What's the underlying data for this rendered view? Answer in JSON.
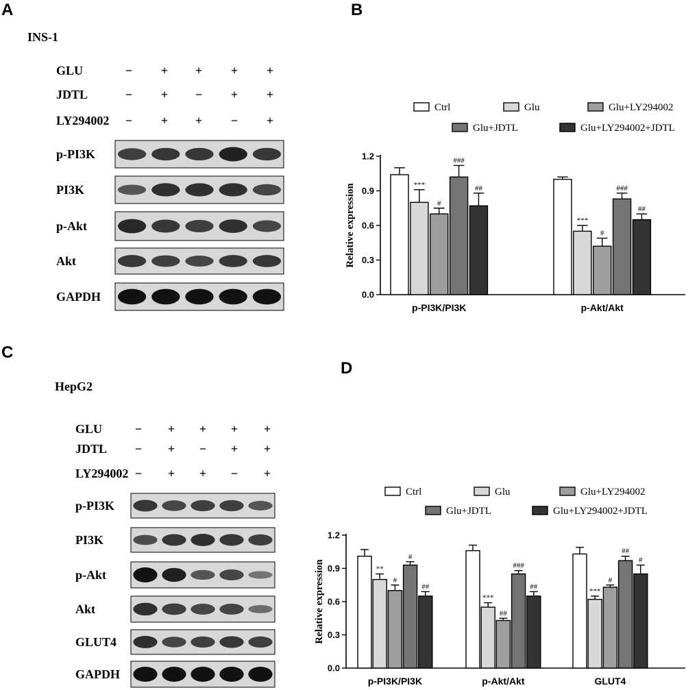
{
  "panels": [
    {
      "label": "A",
      "cell_line": "INS-1",
      "treatments": [
        {
          "name": "GLU",
          "signs": [
            "−",
            "+",
            "+",
            "+",
            "+"
          ]
        },
        {
          "name": "JDTL",
          "signs": [
            "−",
            "+",
            "−",
            "+",
            "+"
          ]
        },
        {
          "name": "LY294002",
          "signs": [
            "−",
            "+",
            "+",
            "−",
            "+"
          ]
        }
      ],
      "blots": [
        {
          "name": "p-PI3K",
          "intensity": [
            0.65,
            0.7,
            0.7,
            0.85,
            0.7
          ]
        },
        {
          "name": "PI3K",
          "intensity": [
            0.5,
            0.75,
            0.75,
            0.75,
            0.6
          ]
        },
        {
          "name": "p-Akt",
          "intensity": [
            0.8,
            0.7,
            0.65,
            0.75,
            0.6
          ]
        },
        {
          "name": "Akt",
          "intensity": [
            0.7,
            0.65,
            0.6,
            0.7,
            0.7
          ]
        },
        {
          "name": "GAPDH",
          "intensity": [
            0.95,
            0.95,
            0.95,
            0.95,
            0.95
          ]
        }
      ]
    },
    {
      "label": "C",
      "cell_line": "HepG2",
      "treatments": [
        {
          "name": "GLU",
          "signs": [
            "−",
            "+",
            "+",
            "+",
            "+"
          ]
        },
        {
          "name": "JDTL",
          "signs": [
            "−",
            "+",
            "−",
            "+",
            "+"
          ]
        },
        {
          "name": "LY294002",
          "signs": [
            "−",
            "+",
            "+",
            "−",
            "+"
          ]
        }
      ],
      "blots": [
        {
          "name": "p-PI3K",
          "intensity": [
            0.7,
            0.6,
            0.65,
            0.65,
            0.5
          ]
        },
        {
          "name": "PI3K",
          "intensity": [
            0.55,
            0.7,
            0.75,
            0.7,
            0.65
          ]
        },
        {
          "name": "p-Akt",
          "intensity": [
            0.95,
            0.85,
            0.5,
            0.6,
            0.3
          ]
        },
        {
          "name": "Akt",
          "intensity": [
            0.75,
            0.65,
            0.6,
            0.6,
            0.35
          ]
        },
        {
          "name": "GLUT4",
          "intensity": [
            0.75,
            0.6,
            0.65,
            0.7,
            0.65
          ]
        },
        {
          "name": "GAPDH",
          "intensity": [
            0.95,
            0.95,
            0.95,
            0.95,
            0.95
          ]
        }
      ]
    }
  ],
  "chart_data": [
    {
      "panel_label": "B",
      "type": "bar",
      "ylabel": "Relative expression",
      "ylim": [
        0,
        1.2
      ],
      "yticks": [
        "0.0",
        "0.3",
        "0.6",
        "0.9",
        "1.2"
      ],
      "legend_position": "top",
      "categories": [
        "p-PI3K/PI3K",
        "p-Akt/Akt"
      ],
      "series": [
        {
          "name": "Ctrl",
          "color": "#ffffff",
          "values": [
            1.04,
            1.0
          ],
          "errors": [
            0.06,
            0.02
          ],
          "significance": [
            "",
            ""
          ]
        },
        {
          "name": "Glu",
          "color": "#d9d9d9",
          "values": [
            0.8,
            0.55
          ],
          "errors": [
            0.11,
            0.05
          ],
          "significance": [
            "***",
            "***"
          ]
        },
        {
          "name": "Glu+LY294002",
          "color": "#9e9e9e",
          "values": [
            0.7,
            0.42
          ],
          "errors": [
            0.05,
            0.07
          ],
          "significance": [
            "#",
            "#"
          ]
        },
        {
          "name": "Glu+JDTL",
          "color": "#747474",
          "values": [
            1.02,
            0.83
          ],
          "errors": [
            0.1,
            0.05
          ],
          "significance": [
            "###",
            "###"
          ]
        },
        {
          "name": "Glu+LY294002+JDTL",
          "color": "#333333",
          "values": [
            0.77,
            0.65
          ],
          "errors": [
            0.11,
            0.05
          ],
          "significance": [
            "##",
            "##"
          ]
        }
      ]
    },
    {
      "panel_label": "D",
      "type": "bar",
      "ylabel": "Relative expression",
      "ylim": [
        0,
        1.2
      ],
      "yticks": [
        "0.0",
        "0.3",
        "0.6",
        "0.9",
        "1.2"
      ],
      "legend_position": "top",
      "categories": [
        "p-PI3K/PI3K",
        "p-Akt/Akt",
        "GLUT4"
      ],
      "series": [
        {
          "name": "Ctrl",
          "color": "#ffffff",
          "values": [
            1.01,
            1.06,
            1.03
          ],
          "errors": [
            0.06,
            0.05,
            0.06
          ],
          "significance": [
            "",
            "",
            ""
          ]
        },
        {
          "name": "Glu",
          "color": "#d9d9d9",
          "values": [
            0.8,
            0.55,
            0.62
          ],
          "errors": [
            0.05,
            0.04,
            0.03
          ],
          "significance": [
            "**",
            "***",
            "***"
          ]
        },
        {
          "name": "Glu+LY294002",
          "color": "#9e9e9e",
          "values": [
            0.7,
            0.43,
            0.73
          ],
          "errors": [
            0.05,
            0.02,
            0.02
          ],
          "significance": [
            "#",
            "##",
            "#"
          ]
        },
        {
          "name": "Glu+JDTL",
          "color": "#747474",
          "values": [
            0.93,
            0.85,
            0.97
          ],
          "errors": [
            0.03,
            0.03,
            0.04
          ],
          "significance": [
            "#",
            "###",
            "##"
          ]
        },
        {
          "name": "Glu+LY294002+JDTL",
          "color": "#333333",
          "values": [
            0.65,
            0.65,
            0.85
          ],
          "errors": [
            0.04,
            0.04,
            0.08
          ],
          "significance": [
            "##",
            "##",
            "#"
          ]
        }
      ]
    }
  ]
}
